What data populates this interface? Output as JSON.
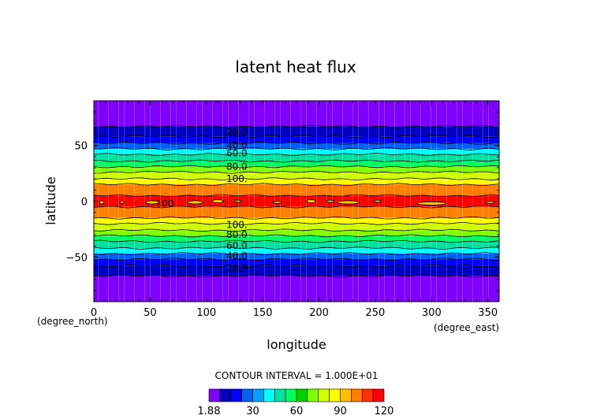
{
  "chart_data": {
    "type": "heatmap",
    "title": "latent heat flux",
    "xlabel": "longitude",
    "ylabel": "latitude",
    "x_unit": "(degree_east)",
    "y_unit": "(degree_north)",
    "xlim": [
      0,
      360
    ],
    "ylim": [
      -90,
      90
    ],
    "x_ticks": [
      "0",
      "50",
      "100",
      "150",
      "200",
      "250",
      "300",
      "350"
    ],
    "y_ticks": [
      "50",
      "0",
      "−50"
    ],
    "contour_interval_text": "CONTOUR INTERVAL = 1.000E+01",
    "contour_labels_north": [
      {
        "text": "20.0",
        "lat": 62
      },
      {
        "text": "40.0",
        "lat": 50
      },
      {
        "text": "60.0",
        "lat": 43
      },
      {
        "text": "80.0",
        "lat": 31
      },
      {
        "text": "100.",
        "lat": 20
      }
    ],
    "contour_labels_south": [
      {
        "text": "100.",
        "lat": -21
      },
      {
        "text": "80.0",
        "lat": -30
      },
      {
        "text": "60.0",
        "lat": -40
      },
      {
        "text": "40.0",
        "lat": -49
      },
      {
        "text": "20.0",
        "lat": -60
      }
    ],
    "equator_label": {
      "text": "100",
      "lat": -2,
      "lon": 63
    },
    "bands": [
      {
        "lat_top": 90,
        "lat_bottom": 67,
        "value": 1.88
      },
      {
        "lat_top": 67,
        "lat_bottom": 58,
        "value": 10
      },
      {
        "lat_top": 58,
        "lat_bottom": 52,
        "value": 20
      },
      {
        "lat_top": 52,
        "lat_bottom": 47,
        "value": 30
      },
      {
        "lat_top": 47,
        "lat_bottom": 42,
        "value": 40
      },
      {
        "lat_top": 42,
        "lat_bottom": 36,
        "value": 50
      },
      {
        "lat_top": 36,
        "lat_bottom": 31,
        "value": 60
      },
      {
        "lat_top": 31,
        "lat_bottom": 26,
        "value": 70
      },
      {
        "lat_top": 26,
        "lat_bottom": 20,
        "value": 80
      },
      {
        "lat_top": 20,
        "lat_bottom": 15,
        "value": 90
      },
      {
        "lat_top": 15,
        "lat_bottom": 5,
        "value": 100
      },
      {
        "lat_top": 5,
        "lat_bottom": -5,
        "value": 110
      },
      {
        "lat_top": -5,
        "lat_bottom": -15,
        "value": 100
      },
      {
        "lat_top": -15,
        "lat_bottom": -20,
        "value": 90
      },
      {
        "lat_top": -20,
        "lat_bottom": -26,
        "value": 80
      },
      {
        "lat_top": -26,
        "lat_bottom": -31,
        "value": 70
      },
      {
        "lat_top": -31,
        "lat_bottom": -36,
        "value": 60
      },
      {
        "lat_top": -36,
        "lat_bottom": -42,
        "value": 50
      },
      {
        "lat_top": -42,
        "lat_bottom": -47,
        "value": 40
      },
      {
        "lat_top": -47,
        "lat_bottom": -52,
        "value": 30
      },
      {
        "lat_top": -52,
        "lat_bottom": -58,
        "value": 20
      },
      {
        "lat_top": -58,
        "lat_bottom": -67,
        "value": 10
      },
      {
        "lat_top": -67,
        "lat_bottom": -90,
        "value": 1.88
      }
    ],
    "max_cells": [
      {
        "lon": 7,
        "lat": -1,
        "w": 4,
        "h": 3
      },
      {
        "lon": 25,
        "lat": -1,
        "w": 4,
        "h": 2
      },
      {
        "lon": 52,
        "lat": -1,
        "w": 12,
        "h": 3
      },
      {
        "lon": 90,
        "lat": -1,
        "w": 14,
        "h": 3
      },
      {
        "lon": 110,
        "lat": 0,
        "w": 10,
        "h": 3
      },
      {
        "lon": 128,
        "lat": 0,
        "w": 6,
        "h": 2
      },
      {
        "lon": 163,
        "lat": -1,
        "w": 8,
        "h": 2
      },
      {
        "lon": 193,
        "lat": 0,
        "w": 8,
        "h": 3
      },
      {
        "lon": 210,
        "lat": 0,
        "w": 7,
        "h": 2
      },
      {
        "lon": 226,
        "lat": -1,
        "w": 20,
        "h": 3
      },
      {
        "lon": 252,
        "lat": 0,
        "w": 6,
        "h": 2
      },
      {
        "lon": 300,
        "lat": -2,
        "w": 26,
        "h": 3
      },
      {
        "lon": 352,
        "lat": -1,
        "w": 8,
        "h": 2
      }
    ],
    "colorbar": {
      "colors": [
        "#7f00ff",
        "#0000c0",
        "#0000ff",
        "#0060ff",
        "#00a0ff",
        "#00ffff",
        "#00e0a0",
        "#00ff60",
        "#00d000",
        "#80ff00",
        "#d0ff00",
        "#ffff00",
        "#ffc000",
        "#ff8000",
        "#ff3000",
        "#ff0000"
      ],
      "tick_labels": [
        "1.88",
        "30",
        "60",
        "90",
        "120"
      ]
    }
  }
}
